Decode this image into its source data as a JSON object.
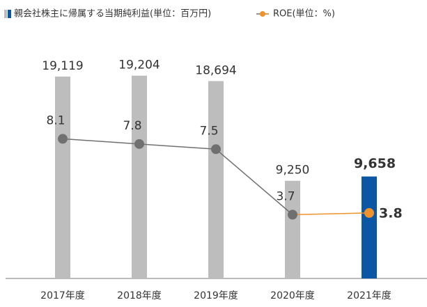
{
  "chart_data": {
    "type": "bar_line",
    "categories": [
      "2017年度",
      "2018年度",
      "2019年度",
      "2020年度",
      "2021年度"
    ],
    "series": [
      {
        "name": "親会社株主に帰属する当期純利益(単位：百万円)",
        "type": "bar",
        "values": [
          19119,
          19204,
          18694,
          9250,
          9658
        ],
        "value_labels": [
          "19,119",
          "19,204",
          "18,694",
          "9,250",
          "9,658"
        ],
        "colors": [
          "#bdbdbd",
          "#bdbdbd",
          "#bdbdbd",
          "#bdbdbd",
          "#0b57a4"
        ]
      },
      {
        "name": "ROE(単位：%)",
        "type": "line",
        "axis": "y2",
        "values": [
          8.1,
          7.8,
          7.5,
          3.7,
          3.8
        ],
        "colors": [
          "#707070",
          "#707070",
          "#707070",
          "#707070",
          "#f0922b"
        ]
      }
    ],
    "ylim": [
      0,
      24000
    ],
    "y2lim": [
      0,
      14.7
    ]
  }
}
